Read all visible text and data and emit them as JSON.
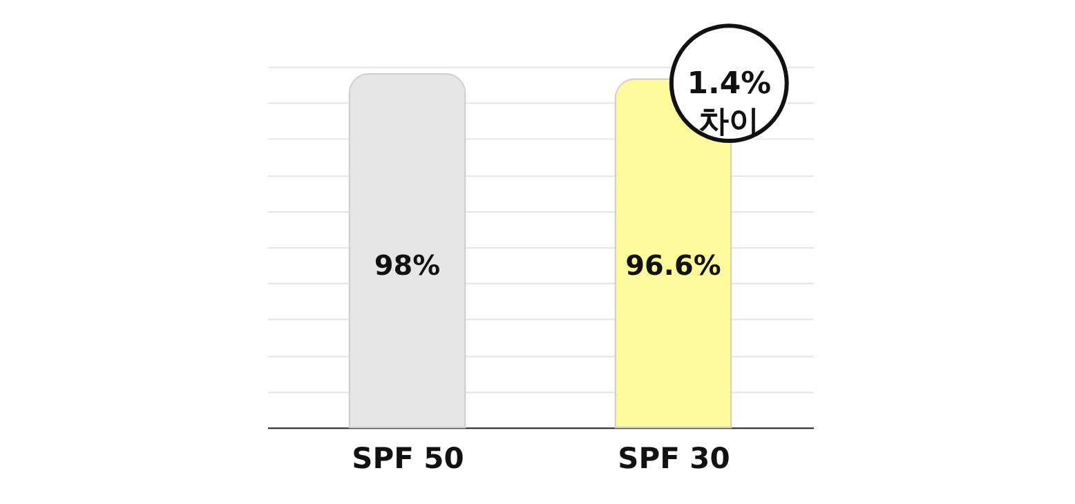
{
  "chart_data": {
    "type": "bar",
    "categories": [
      "SPF 50",
      "SPF 30"
    ],
    "values": [
      98,
      96.6
    ],
    "colors": [
      "#e6e6e6",
      "#fdfa9c"
    ],
    "value_labels": [
      "98%",
      "96.6%"
    ],
    "ylim": [
      0,
      100
    ],
    "yticks": [
      {
        "value": 0,
        "label": null
      },
      {
        "value": 10,
        "label": null
      },
      {
        "value": 20,
        "label": null
      },
      {
        "value": 30,
        "label": null
      },
      {
        "value": 40,
        "label": null
      },
      {
        "value": 50,
        "label": null
      },
      {
        "value": 60,
        "label": null
      },
      {
        "value": 70,
        "label": null
      },
      {
        "value": 80,
        "label": null
      },
      {
        "value": 90,
        "label": null
      },
      {
        "value": 100,
        "label": null
      }
    ],
    "grid": "y",
    "annotations": [
      "1.4% 차이"
    ]
  }
}
